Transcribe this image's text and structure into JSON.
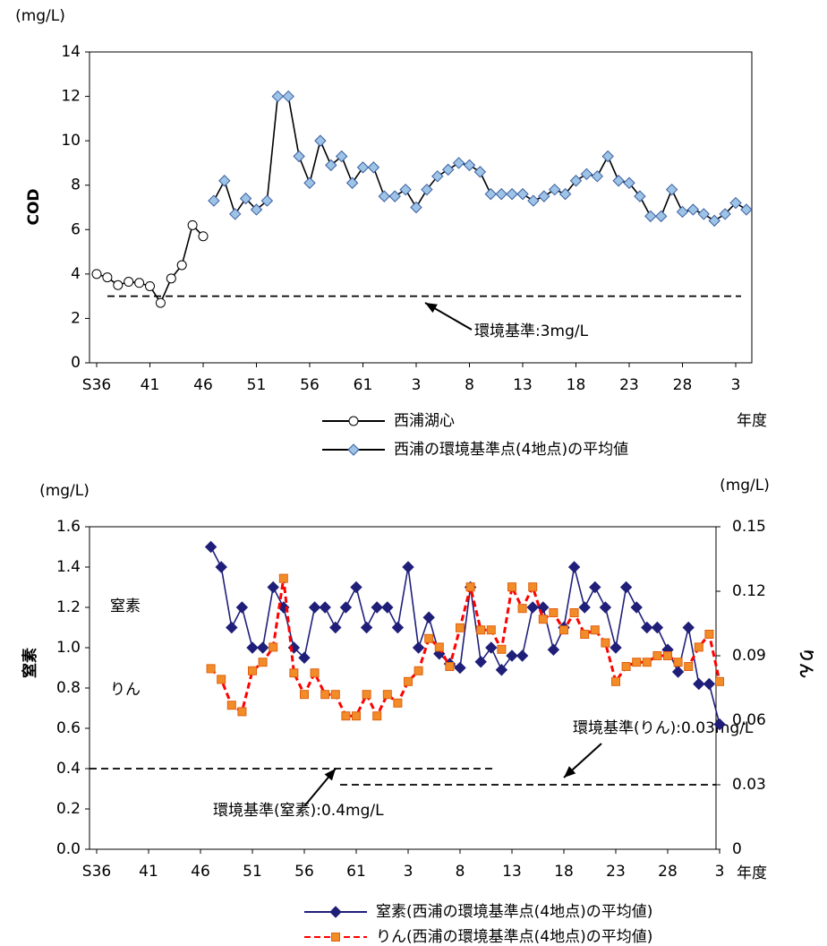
{
  "chart_data": [
    {
      "type": "line",
      "unit_label": "(mg/L)",
      "ylabel": "COD",
      "xlabel": "年度",
      "categories": [
        "S36",
        null,
        null,
        null,
        null,
        "41",
        null,
        null,
        null,
        null,
        "46",
        null,
        null,
        null,
        null,
        "51",
        null,
        null,
        null,
        null,
        "56",
        null,
        null,
        null,
        null,
        "61",
        null,
        null,
        null,
        null,
        "3",
        null,
        null,
        null,
        null,
        "8",
        null,
        null,
        null,
        null,
        "13",
        null,
        null,
        null,
        null,
        "18",
        null,
        null,
        null,
        null,
        "23",
        null,
        null,
        null,
        null,
        "28",
        null,
        null,
        null,
        null,
        "3",
        null
      ],
      "ylim": [
        0,
        14
      ],
      "yticks": [
        0,
        2,
        4,
        6,
        8,
        10,
        12,
        14
      ],
      "reference_lines": [
        {
          "value": 3,
          "label": "環境基準:3mg/L"
        }
      ],
      "series": [
        {
          "name": "西浦湖心",
          "color": "#000000",
          "marker": "circle",
          "marker_color": "#ffffff",
          "line_style": "solid",
          "values": [
            4.0,
            3.85,
            3.5,
            3.65,
            3.6,
            3.45,
            2.7,
            3.8,
            4.4,
            6.2,
            5.7,
            null,
            null,
            null,
            null,
            null,
            null,
            null,
            null,
            null,
            null,
            null,
            null,
            null,
            null,
            null,
            null,
            null,
            null,
            null,
            null,
            null,
            null,
            null,
            null,
            null,
            null,
            null,
            null,
            null,
            null,
            null,
            null,
            null,
            null,
            null,
            null,
            null,
            null,
            null,
            null,
            null,
            null,
            null,
            null,
            null,
            null,
            null,
            null,
            null,
            null,
            null
          ]
        },
        {
          "name": "西浦の環境基準点(4地点)の平均値",
          "color": "#000000",
          "marker": "diamond",
          "marker_color": "#9dc3e6",
          "line_style": "solid",
          "values": [
            null,
            null,
            null,
            null,
            null,
            null,
            null,
            null,
            null,
            null,
            null,
            7.3,
            8.2,
            6.7,
            7.4,
            6.9,
            7.3,
            12.0,
            12.0,
            9.3,
            8.1,
            10.0,
            8.9,
            9.3,
            8.1,
            8.8,
            8.8,
            7.5,
            7.5,
            7.8,
            7.0,
            7.8,
            8.4,
            8.7,
            9.0,
            8.9,
            8.6,
            7.6,
            7.6,
            7.6,
            7.6,
            7.3,
            7.5,
            7.8,
            7.6,
            8.2,
            8.5,
            8.4,
            9.3,
            8.2,
            8.1,
            7.5,
            6.6,
            6.6,
            7.8,
            6.8,
            6.9,
            6.7,
            6.4,
            6.7,
            7.2,
            6.9
          ]
        }
      ]
    },
    {
      "type": "line",
      "unit_label": "(mg/L)",
      "y2unit_label": "(mg/L)",
      "ylabel": "窒素",
      "y2label": "りん",
      "xlabel": "年度",
      "annotations": [
        "窒素",
        "りん"
      ],
      "categories": [
        "S36",
        null,
        null,
        null,
        null,
        "41",
        null,
        null,
        null,
        null,
        "46",
        null,
        null,
        null,
        null,
        "51",
        null,
        null,
        null,
        null,
        "56",
        null,
        null,
        null,
        null,
        "61",
        null,
        null,
        null,
        null,
        "3",
        null,
        null,
        null,
        null,
        "8",
        null,
        null,
        null,
        null,
        "13",
        null,
        null,
        null,
        null,
        "18",
        null,
        null,
        null,
        null,
        "23",
        null,
        null,
        null,
        null,
        "28",
        null,
        null,
        null,
        null,
        "3"
      ],
      "ylim": [
        0,
        1.6
      ],
      "yticks": [
        {
          "value": 0,
          "label": "0.0"
        },
        0.2,
        0.4,
        0.6,
        0.8,
        {
          "value": 1,
          "label": "1.0"
        },
        1.2,
        1.4,
        1.6
      ],
      "y2lim": [
        0,
        0.15
      ],
      "y2ticks": [
        0,
        0.03,
        0.06,
        0.09,
        0.12,
        0.15
      ],
      "reference_lines": [
        {
          "value": 0.4,
          "label": "環境基準(窒素):0.4mg/L"
        },
        {
          "value": 0.03,
          "label": "環境基準(りん):0.03mg/L",
          "axis": "y2"
        }
      ],
      "series": [
        {
          "name": "窒素(西浦の環境基準点(4地点)の平均値)",
          "color": "#1f1f7a",
          "marker": "diamond",
          "marker_color": "#1f1f7a",
          "line_style": "solid",
          "values": [
            null,
            null,
            null,
            null,
            null,
            null,
            null,
            null,
            null,
            null,
            null,
            1.5,
            1.4,
            1.1,
            1.2,
            1.0,
            1.0,
            1.3,
            1.2,
            1.0,
            0.95,
            1.2,
            1.2,
            1.1,
            1.2,
            1.3,
            1.1,
            1.2,
            1.2,
            1.1,
            1.4,
            1.0,
            1.15,
            0.97,
            0.92,
            0.9,
            1.3,
            0.93,
            1.0,
            0.89,
            0.96,
            0.96,
            1.2,
            1.2,
            0.99,
            1.1,
            1.4,
            1.2,
            1.3,
            1.2,
            1.0,
            1.3,
            1.2,
            1.1,
            1.1,
            0.99,
            0.88,
            1.1,
            0.82,
            0.82,
            0.62
          ]
        },
        {
          "name": "りん(西浦の環境基準点(4地点)の平均値)",
          "color": "#ff0000",
          "marker": "square",
          "marker_color": "#f28c28",
          "line_style": "dashed",
          "axis": "y2",
          "values": [
            null,
            null,
            null,
            null,
            null,
            null,
            null,
            null,
            null,
            null,
            null,
            0.084,
            0.079,
            0.067,
            0.064,
            0.083,
            0.087,
            0.094,
            0.126,
            0.082,
            0.072,
            0.082,
            0.072,
            0.072,
            0.062,
            0.062,
            0.072,
            0.062,
            0.072,
            0.068,
            0.078,
            0.083,
            0.098,
            0.094,
            0.085,
            0.103,
            0.122,
            0.102,
            0.102,
            0.093,
            0.122,
            0.112,
            0.122,
            0.107,
            0.11,
            0.102,
            0.11,
            0.1,
            0.102,
            0.096,
            0.078,
            0.085,
            0.087,
            0.087,
            0.09,
            0.09,
            0.087,
            0.085,
            0.094,
            0.1,
            0.078
          ]
        }
      ]
    }
  ]
}
